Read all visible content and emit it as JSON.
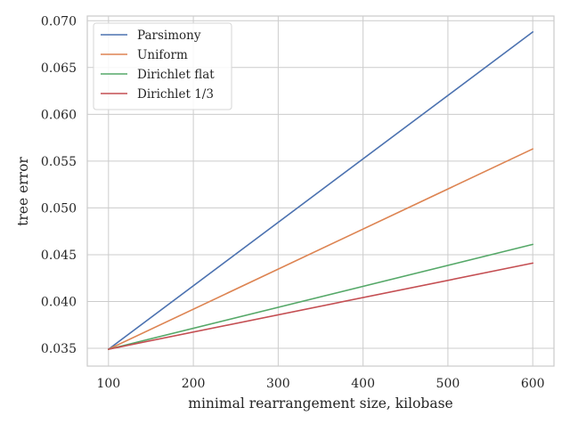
{
  "chart_data": {
    "type": "line",
    "title": "",
    "xlabel": "minimal rearrangement size, kilobase",
    "ylabel": "tree error",
    "xlim": [
      75,
      625
    ],
    "ylim": [
      0.0331,
      0.0705
    ],
    "xticks": [
      100,
      200,
      300,
      400,
      500,
      600
    ],
    "yticks": [
      0.035,
      0.04,
      0.045,
      0.05,
      0.055,
      0.06,
      0.065,
      0.07
    ],
    "ytick_labels": [
      "0.035",
      "0.040",
      "0.045",
      "0.050",
      "0.055",
      "0.060",
      "0.065",
      "0.070"
    ],
    "grid": true,
    "legend_position": "top-left",
    "x": [
      100,
      600
    ],
    "series": [
      {
        "name": "Parsimony",
        "color": "#4c72b0",
        "values": [
          0.0349,
          0.0688
        ]
      },
      {
        "name": "Uniform",
        "color": "#dd8452",
        "values": [
          0.0349,
          0.0563
        ]
      },
      {
        "name": "Dirichlet flat",
        "color": "#55a868",
        "values": [
          0.0349,
          0.0461
        ]
      },
      {
        "name": "Dirichlet 1/3",
        "color": "#c44e52",
        "values": [
          0.0349,
          0.0441
        ]
      }
    ]
  }
}
